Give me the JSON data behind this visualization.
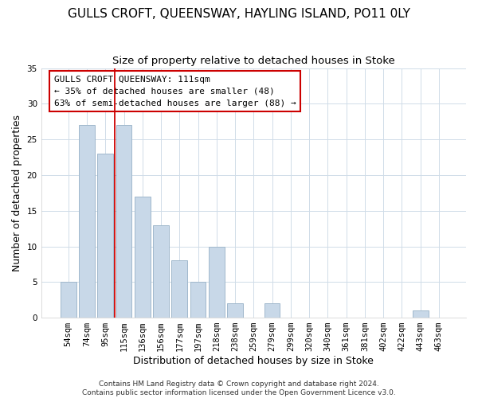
{
  "title": "GULLS CROFT, QUEENSWAY, HAYLING ISLAND, PO11 0LY",
  "subtitle": "Size of property relative to detached houses in Stoke",
  "xlabel": "Distribution of detached houses by size in Stoke",
  "ylabel": "Number of detached properties",
  "bar_labels": [
    "54sqm",
    "74sqm",
    "95sqm",
    "115sqm",
    "136sqm",
    "156sqm",
    "177sqm",
    "197sqm",
    "218sqm",
    "238sqm",
    "259sqm",
    "279sqm",
    "299sqm",
    "320sqm",
    "340sqm",
    "361sqm",
    "381sqm",
    "402sqm",
    "422sqm",
    "443sqm",
    "463sqm"
  ],
  "bar_values": [
    5,
    27,
    23,
    27,
    17,
    13,
    8,
    5,
    10,
    2,
    0,
    2,
    0,
    0,
    0,
    0,
    0,
    0,
    0,
    1,
    0
  ],
  "bar_color": "#c8d8e8",
  "bar_edge_color": "#a0b8cc",
  "vline_x_index": 3,
  "vline_color": "#cc0000",
  "annotation_title": "GULLS CROFT QUEENSWAY: 111sqm",
  "annotation_line1": "← 35% of detached houses are smaller (48)",
  "annotation_line2": "63% of semi-detached houses are larger (88) →",
  "annotation_box_color": "#ffffff",
  "annotation_box_edge": "#cc0000",
  "footer1": "Contains HM Land Registry data © Crown copyright and database right 2024.",
  "footer2": "Contains public sector information licensed under the Open Government Licence v3.0.",
  "ylim": [
    0,
    35
  ],
  "yticks": [
    0,
    5,
    10,
    15,
    20,
    25,
    30,
    35
  ],
  "title_fontsize": 11,
  "subtitle_fontsize": 9.5,
  "axis_label_fontsize": 9,
  "tick_fontsize": 7.5,
  "ann_fontsize": 8,
  "footer_fontsize": 6.5,
  "background_color": "#ffffff",
  "grid_color": "#d0dce8"
}
